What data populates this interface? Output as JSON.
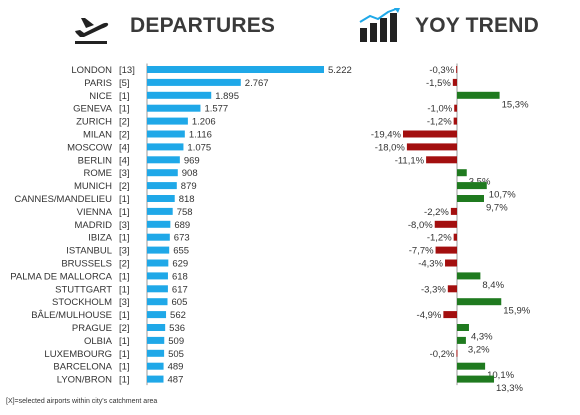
{
  "header": {
    "departures_title": "DEPARTURES",
    "yoy_title": "YOY TREND",
    "departures_icon": "airplane-takeoff-icon",
    "yoy_icon": "bar-chart-trend-icon"
  },
  "footnote": "[X]=selected airports within city's catchment area",
  "colors": {
    "departures_bar": "#1fa8e8",
    "positive": "#1f7a1f",
    "negative": "#a30f0f",
    "axis": "#999999",
    "text": "#333333"
  },
  "chart_data": [
    {
      "type": "bar",
      "orientation": "horizontal",
      "title": "DEPARTURES",
      "categories": [
        "LONDON",
        "PARIS",
        "NICE",
        "GENEVA",
        "ZURICH",
        "MILAN",
        "MOSCOW",
        "BERLIN",
        "ROME",
        "MUNICH",
        "CANNES/MANDELIEU",
        "VIENNA",
        "MADRID",
        "IBIZA",
        "ISTANBUL",
        "BRUSSELS",
        "PALMA DE MALLORCA",
        "STUTTGART",
        "STOCKHOLM",
        "BÂLE/MULHOUSE",
        "PRAGUE",
        "OLBIA",
        "LUXEMBOURG",
        "BARCELONA",
        "LYON/BRON"
      ],
      "airport_counts": [
        "[13]",
        "[5]",
        "[1]",
        "[1]",
        "[2]",
        "[2]",
        "[4]",
        "[4]",
        "[3]",
        "[2]",
        "[1]",
        "[1]",
        "[3]",
        "[1]",
        "[3]",
        "[2]",
        "[1]",
        "[1]",
        "[3]",
        "[1]",
        "[2]",
        "[1]",
        "[1]",
        "[1]",
        "[1]"
      ],
      "values": [
        5222,
        2767,
        1895,
        1577,
        1206,
        1116,
        1075,
        969,
        908,
        879,
        818,
        758,
        689,
        673,
        655,
        629,
        618,
        617,
        605,
        562,
        536,
        509,
        505,
        489,
        487
      ],
      "value_labels": [
        "5.222",
        "2.767",
        "1.895",
        "1.577",
        "1.206",
        "1.116",
        "1.075",
        "969",
        "908",
        "879",
        "818",
        "758",
        "689",
        "673",
        "655",
        "629",
        "618",
        "617",
        "605",
        "562",
        "536",
        "509",
        "505",
        "489",
        "487"
      ],
      "xlim": [
        0,
        5222
      ]
    },
    {
      "type": "bar",
      "orientation": "horizontal",
      "title": "YOY TREND",
      "categories": [
        "LONDON",
        "PARIS",
        "NICE",
        "GENEVA",
        "ZURICH",
        "MILAN",
        "MOSCOW",
        "BERLIN",
        "ROME",
        "MUNICH",
        "CANNES/MANDELIEU",
        "VIENNA",
        "MADRID",
        "IBIZA",
        "ISTANBUL",
        "BRUSSELS",
        "PALMA DE MALLORCA",
        "STUTTGART",
        "STOCKHOLM",
        "BÂLE/MULHOUSE",
        "PRAGUE",
        "OLBIA",
        "LUXEMBOURG",
        "BARCELONA",
        "LYON/BRON"
      ],
      "values": [
        -0.3,
        -1.5,
        15.3,
        -1.0,
        -1.2,
        -19.4,
        -18.0,
        -11.1,
        3.5,
        10.7,
        9.7,
        -2.2,
        -8.0,
        -1.2,
        -7.7,
        -4.3,
        8.4,
        -3.3,
        15.9,
        -4.9,
        4.3,
        3.2,
        -0.2,
        10.1,
        13.3
      ],
      "value_labels": [
        "-0,3%",
        "-1,5%",
        "15,3%",
        "-1,0%",
        "-1,2%",
        "-19,4%",
        "-18,0%",
        "-11,1%",
        "3,5%",
        "10,7%",
        "9,7%",
        "-2,2%",
        "-8,0%",
        "-1,2%",
        "-7,7%",
        "-4,3%",
        "8,4%",
        "-3,3%",
        "15,9%",
        "-4,9%",
        "4,3%",
        "3,2%",
        "-0,2%",
        "10,1%",
        "13,3%"
      ],
      "unit": "%",
      "xlim": [
        -19.4,
        15.9
      ]
    }
  ]
}
